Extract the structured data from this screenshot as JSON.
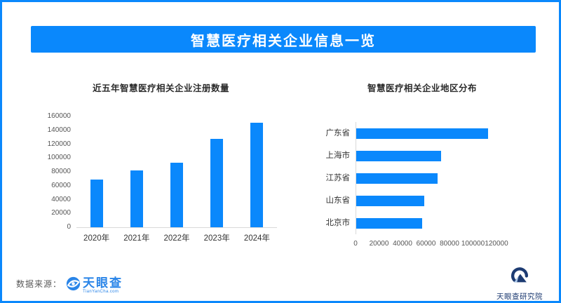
{
  "page": {
    "title": "智慧医疗相关企业信息一览"
  },
  "colors": {
    "primary_blue": "#0a88fc",
    "logo_blue": "#2a85e8",
    "navy": "#1d3b72",
    "axis_line": "#d9d9d9"
  },
  "chart_data": [
    {
      "type": "bar",
      "title": "近五年智慧医疗相关企业注册数量",
      "categories": [
        "2020年",
        "2021年",
        "2022年",
        "2023年",
        "2024年"
      ],
      "values": [
        69000,
        82000,
        93000,
        128000,
        151000
      ],
      "ylabel": "",
      "xlabel": "",
      "ylim": [
        0,
        160000
      ],
      "yticks": [
        0,
        20000,
        40000,
        60000,
        80000,
        100000,
        120000,
        140000,
        160000
      ],
      "grid": false,
      "legend": "none",
      "bar_color": "#0a88fc"
    },
    {
      "type": "bar-horizontal",
      "title": "智慧医疗相关企业地区分布",
      "categories": [
        "广东省",
        "上海市",
        "江苏省",
        "山东省",
        "北京市"
      ],
      "values": [
        112000,
        72000,
        69000,
        58000,
        56000
      ],
      "ylabel": "",
      "xlabel": "",
      "xlim": [
        0,
        120000
      ],
      "xticks": [
        0,
        20000,
        40000,
        60000,
        80000,
        100000,
        120000
      ],
      "grid": false,
      "legend": "none",
      "bar_color": "#0a88fc"
    }
  ],
  "footer": {
    "source_label": "数据来源：",
    "source_logo_text": "天眼查",
    "source_logo_sub": "TianYanCha.com",
    "institute_label": "天眼查研究院"
  }
}
